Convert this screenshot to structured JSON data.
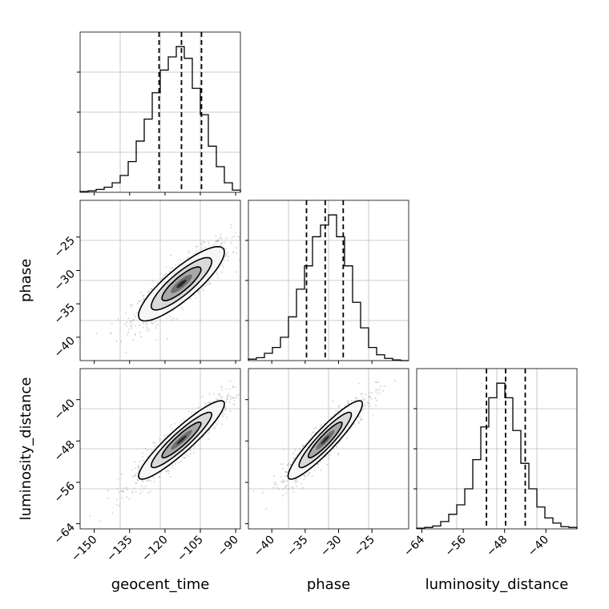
{
  "chart_data": {
    "type": "corner",
    "parameters": [
      "geocent_time",
      "phase",
      "luminosity_distance"
    ],
    "labels": [
      "geocent_time",
      "phase",
      "luminosity_distance"
    ],
    "ranges": [
      [
        -156,
        -88
      ],
      [
        -43.5,
        -19.5
      ],
      [
        -65,
        -34
      ]
    ],
    "ticks": [
      [
        -150,
        -135,
        -120,
        -105,
        -90
      ],
      [
        -40,
        -35,
        -30,
        -25
      ],
      [
        -64,
        -56,
        -48,
        -40
      ]
    ],
    "quantile_lines": [
      [
        -122.5,
        -113,
        -104.5
      ],
      [
        -34.8,
        -32,
        -29.3
      ],
      [
        -51.5,
        -47.8,
        -44
      ]
    ],
    "grid": true,
    "histograms": [
      {
        "parameter": "geocent_time",
        "bin_edges": [
          -156,
          -152.6,
          -149.2,
          -145.8,
          -142.4,
          -139,
          -135.6,
          -132.2,
          -128.8,
          -125.4,
          -122,
          -118.6,
          -115.2,
          -111.8,
          -108.4,
          -105,
          -101.6,
          -98.2,
          -94.8,
          -91.4,
          -88
        ],
        "counts": [
          1,
          2,
          4,
          7,
          13,
          23,
          42,
          70,
          100,
          136,
          167,
          185,
          199,
          183,
          142,
          106,
          63,
          35,
          13,
          3
        ]
      },
      {
        "parameter": "phase",
        "bin_edges": [
          -43.5,
          -42.3,
          -41.1,
          -39.9,
          -38.7,
          -37.5,
          -36.3,
          -35.1,
          -33.9,
          -32.7,
          -31.5,
          -30.3,
          -29.1,
          -27.9,
          -26.7,
          -25.5,
          -24.3,
          -23.1,
          -21.9,
          -20.7,
          -19.5
        ],
        "counts": [
          2,
          4,
          10,
          18,
          32,
          60,
          98,
          130,
          170,
          186,
          200,
          170,
          130,
          80,
          45,
          18,
          8,
          3,
          1,
          0
        ]
      },
      {
        "parameter": "luminosity_distance",
        "bin_edges": [
          -65,
          -63.45,
          -61.9,
          -60.35,
          -58.8,
          -57.25,
          -55.7,
          -54.15,
          -52.6,
          -51.05,
          -49.5,
          -47.95,
          -46.4,
          -44.85,
          -43.3,
          -41.75,
          -40.2,
          -38.65,
          -37.1,
          -35.55,
          -34
        ],
        "counts": [
          1,
          2,
          4,
          10,
          20,
          33,
          55,
          95,
          140,
          180,
          200,
          180,
          135,
          90,
          55,
          30,
          15,
          8,
          3,
          2
        ]
      }
    ],
    "panels_2d": [
      {
        "x": "geocent_time",
        "y": "phase",
        "correlation": 0.85
      },
      {
        "x": "geocent_time",
        "y": "luminosity_distance",
        "correlation": 0.92
      },
      {
        "x": "phase",
        "y": "luminosity_distance",
        "correlation": 0.92
      }
    ]
  }
}
